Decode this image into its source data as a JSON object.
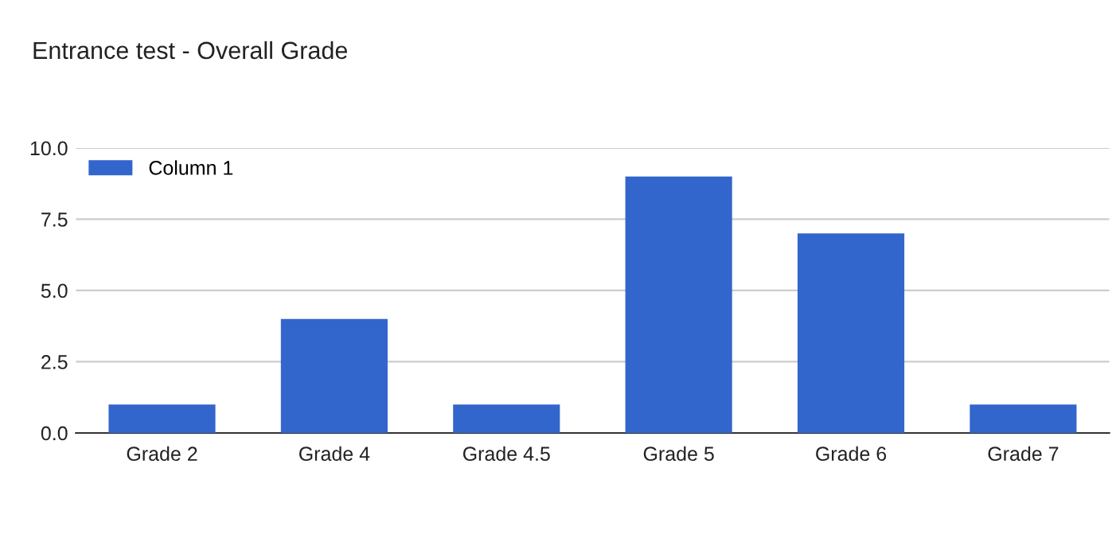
{
  "chart_data": {
    "type": "bar",
    "title": "Entrance test - Overall Grade",
    "categories": [
      "Grade 2",
      "Grade 4",
      "Grade 4.5",
      "Grade 5",
      "Grade 6",
      "Grade 7"
    ],
    "series": [
      {
        "name": "Column 1",
        "color": "#3366cc",
        "values": [
          1,
          4,
          1,
          9,
          7,
          1
        ]
      }
    ],
    "ylim": [
      0,
      10
    ],
    "yticks": [
      {
        "value": 0,
        "label": "0.0"
      },
      {
        "value": 2.5,
        "label": "2.5"
      },
      {
        "value": 5,
        "label": "5.0"
      },
      {
        "value": 7.5,
        "label": "7.5"
      },
      {
        "value": 10,
        "label": "10.0"
      }
    ],
    "grid": "y",
    "legend": "top left"
  }
}
